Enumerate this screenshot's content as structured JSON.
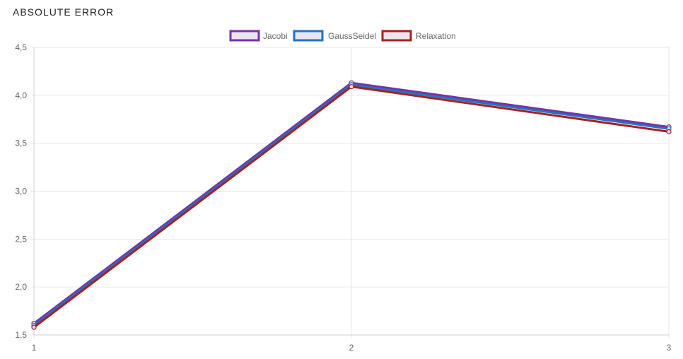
{
  "card": {
    "title": "ABSOLUTE ERROR"
  },
  "colors": {
    "jacobi": "#7b2fa8",
    "gaussseidel": "#1f74c2",
    "relaxation": "#a8201a",
    "grid": "#e6e6e6",
    "axis_text": "#666666"
  },
  "chart_data": {
    "type": "line",
    "title": "ABSOLUTE ERROR",
    "xlabel": "",
    "ylabel": "",
    "x": [
      1,
      2,
      3
    ],
    "x_tick_labels": [
      "1",
      "2",
      "3"
    ],
    "ylim": [
      1.5,
      4.5
    ],
    "y_tick_labels": [
      "4,5",
      "4,0",
      "3,5",
      "3,0",
      "2,5",
      "2,0",
      "1,5"
    ],
    "y_ticks": [
      4.5,
      4.0,
      3.5,
      3.0,
      2.5,
      2.0,
      1.5
    ],
    "grid": true,
    "legend_position": "top-center",
    "series": [
      {
        "name": "Jacobi",
        "values": [
          1.62,
          4.13,
          3.67
        ]
      },
      {
        "name": "GaussSeidel",
        "values": [
          1.6,
          4.11,
          3.65
        ]
      },
      {
        "name": "Relaxation",
        "values": [
          1.58,
          4.09,
          3.62
        ]
      }
    ]
  }
}
